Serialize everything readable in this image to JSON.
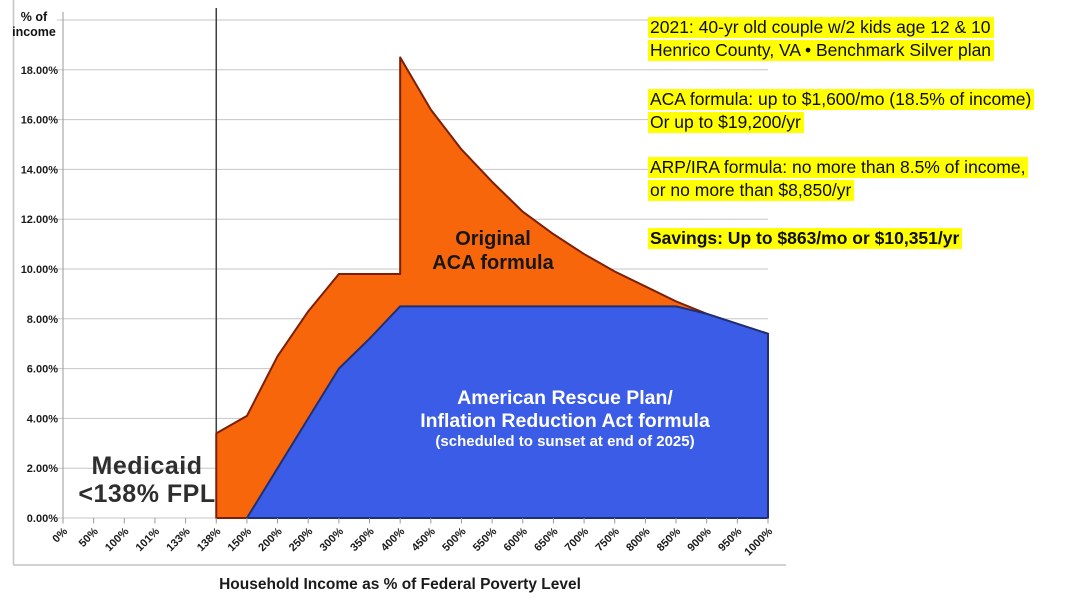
{
  "chart": {
    "y_axis_title_line1": "% of",
    "y_axis_title_line2": "income",
    "x_axis_title": "Household Income as % of Federal Poverty Level",
    "labels": {
      "medicaid_line1": "Medicaid",
      "medicaid_line2": "<138% FPL",
      "aca_area_line1": "Original",
      "aca_area_line2": "ACA formula",
      "arp_area_line1": "American Rescue Plan/",
      "arp_area_line2": "Inflation Reduction Act formula",
      "arp_area_line3": "(scheduled to sunset at end of 2025)"
    }
  },
  "annotations": [
    {
      "lines": [
        "2021: 40-yr old couple w/2 kids age 12 & 10",
        "Henrico County, VA • Benchmark Silver plan"
      ],
      "bold": false
    },
    {
      "lines": [
        "ACA formula: up to $1,600/mo (18.5% of income)",
        "Or up to $19,200/yr"
      ],
      "bold": false
    },
    {
      "lines": [
        "ARP/IRA formula: no more than 8.5% of income,",
        "or no more than $8,850/yr"
      ],
      "bold": false
    },
    {
      "lines": [
        "Savings: Up to $863/mo or $10,351/yr"
      ],
      "bold": true
    }
  ],
  "colors": {
    "aca_fill": "#f8660b",
    "aca_stroke": "#7e1e06",
    "arp_fill": "#3b5ce6",
    "arp_stroke": "#1e2f73",
    "highlight": "#ffff00",
    "gridline": "#c6c6c6",
    "axis": "#9a9a9a",
    "fpl_line": "#3f3f3f",
    "frame": "#c4c4c4"
  },
  "chart_data": {
    "type": "area",
    "title": "",
    "xlabel": "Household Income as % of Federal Poverty Level",
    "ylabel": "% of income",
    "categories": [
      "0%",
      "50%",
      "100%",
      "101%",
      "133%",
      "138%",
      "150%",
      "200%",
      "250%",
      "300%",
      "350%",
      "400%",
      "450%",
      "500%",
      "550%",
      "600%",
      "650%",
      "700%",
      "750%",
      "800%",
      "850%",
      "900%",
      "950%",
      "1000%"
    ],
    "y_tick_labels": [
      "0.00%",
      "2.00%",
      "4.00%",
      "6.00%",
      "8.00%",
      "10.00%",
      "12.00%",
      "14.00%",
      "16.00%",
      "18.00%"
    ],
    "y_tick_values": [
      0,
      2,
      4,
      6,
      8,
      10,
      12,
      14,
      16,
      18
    ],
    "ylim": [
      0,
      20
    ],
    "grid": true,
    "vertical_line_at": "138%",
    "series": [
      {
        "name": "Original ACA formula",
        "color": "#f8660b",
        "note": "subsidy cliff at 400% FPL: jumps from 9.8% to 18.5% of income",
        "points": [
          [
            "138%",
            0
          ],
          [
            "138%",
            3.4
          ],
          [
            "150%",
            4.1
          ],
          [
            "200%",
            6.5
          ],
          [
            "250%",
            8.3
          ],
          [
            "300%",
            9.8
          ],
          [
            "350%",
            9.8
          ],
          [
            "400%",
            9.8
          ],
          [
            "400%",
            18.5
          ],
          [
            "450%",
            16.4
          ],
          [
            "500%",
            14.8
          ],
          [
            "550%",
            13.5
          ],
          [
            "600%",
            12.3
          ],
          [
            "650%",
            11.4
          ],
          [
            "700%",
            10.6
          ],
          [
            "750%",
            9.9
          ],
          [
            "800%",
            9.3
          ],
          [
            "850%",
            8.7
          ],
          [
            "900%",
            8.2
          ],
          [
            "950%",
            7.8
          ],
          [
            "1000%",
            7.4
          ],
          [
            "1000%",
            0
          ]
        ]
      },
      {
        "name": "American Rescue Plan / Inflation Reduction Act formula",
        "color": "#3b5ce6",
        "note": "capped at 8.5% of income; scheduled to sunset at end of 2025",
        "points": [
          [
            "150%",
            0
          ],
          [
            "200%",
            2
          ],
          [
            "250%",
            4
          ],
          [
            "300%",
            6
          ],
          [
            "350%",
            7.2
          ],
          [
            "400%",
            8.5
          ],
          [
            "850%",
            8.5
          ],
          [
            "900%",
            8.2
          ],
          [
            "950%",
            7.8
          ],
          [
            "1000%",
            7.4
          ],
          [
            "1000%",
            0
          ]
        ]
      }
    ]
  }
}
